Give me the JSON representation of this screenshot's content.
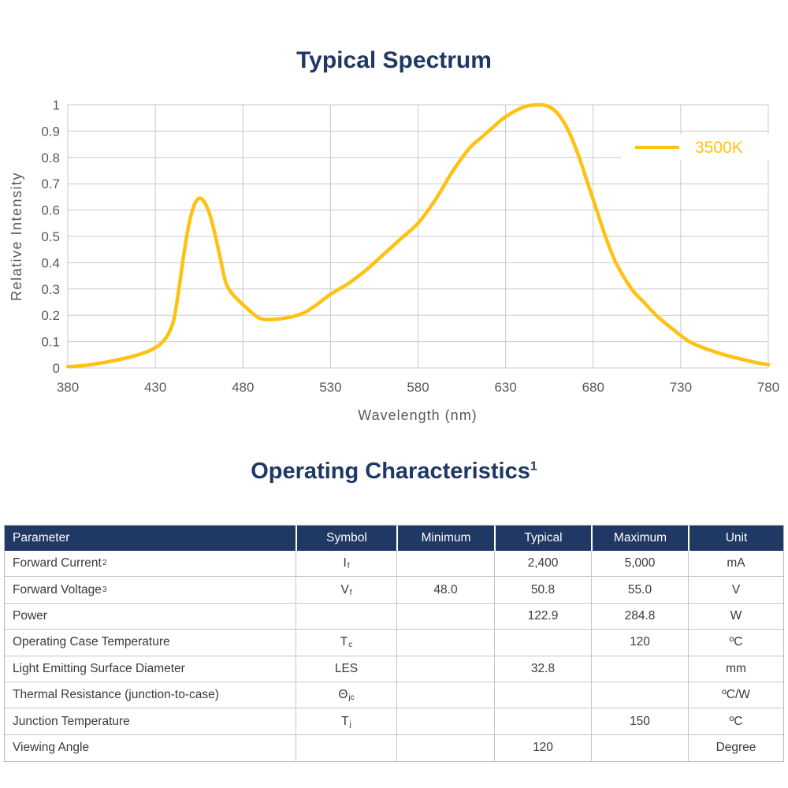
{
  "page": {
    "background": "#ffffff",
    "accent_navy": "#1f3864",
    "accent_gold": "#ffc112",
    "grid_color": "#c9c9c9",
    "axis_text_color": "#595959"
  },
  "chart_data": {
    "type": "line",
    "title": "Typical Spectrum",
    "xlabel": "Wavelength (nm)",
    "ylabel": "Relative Intensity",
    "xlim": [
      380,
      780
    ],
    "ylim": [
      0,
      1
    ],
    "x_ticks": [
      380,
      430,
      480,
      530,
      580,
      630,
      680,
      730,
      780
    ],
    "y_ticks": [
      0,
      0.1,
      0.2,
      0.3,
      0.4,
      0.5,
      0.6,
      0.7,
      0.8,
      0.9,
      1
    ],
    "grid": true,
    "legend_position": "inside-top-right",
    "series": [
      {
        "name": "3500K",
        "color": "#ffc112",
        "x": [
          380,
          390,
          400,
          410,
          420,
          428,
          435,
          440,
          443,
          446,
          449,
          452,
          455,
          458,
          461,
          464,
          467,
          470,
          473,
          477,
          481,
          486,
          491,
          500,
          508,
          515,
          522,
          530,
          540,
          550,
          560,
          570,
          580,
          590,
          600,
          610,
          616,
          622,
          628,
          635,
          641,
          648,
          654,
          660,
          666,
          672,
          677,
          682,
          687,
          693,
          702,
          709,
          716,
          725,
          735,
          745,
          755,
          765,
          772,
          780
        ],
        "y": [
          0.005,
          0.01,
          0.02,
          0.033,
          0.05,
          0.07,
          0.105,
          0.17,
          0.28,
          0.42,
          0.54,
          0.615,
          0.645,
          0.63,
          0.585,
          0.51,
          0.42,
          0.33,
          0.29,
          0.26,
          0.235,
          0.205,
          0.186,
          0.186,
          0.195,
          0.21,
          0.24,
          0.28,
          0.32,
          0.37,
          0.43,
          0.49,
          0.55,
          0.64,
          0.75,
          0.84,
          0.875,
          0.91,
          0.945,
          0.975,
          0.993,
          1.0,
          0.995,
          0.965,
          0.9,
          0.8,
          0.7,
          0.6,
          0.5,
          0.4,
          0.3,
          0.25,
          0.2,
          0.15,
          0.1,
          0.072,
          0.05,
          0.033,
          0.022,
          0.013
        ]
      }
    ]
  },
  "table": {
    "title": "Operating Characteristics",
    "title_sup": "1",
    "columns": [
      "Parameter",
      "Symbol",
      "Minimum",
      "Typical",
      "Maximum",
      "Unit"
    ],
    "rows": [
      {
        "parameter": "Forward Current",
        "parameter_sup": "2",
        "symbol": "I",
        "symbol_sub": "f",
        "minimum": "",
        "typical": "2,400",
        "maximum": "5,000",
        "unit": "mA"
      },
      {
        "parameter": "Forward Voltage",
        "parameter_sup": "3",
        "symbol": "V",
        "symbol_sub": "f",
        "minimum": "48.0",
        "typical": "50.8",
        "maximum": "55.0",
        "unit": "V"
      },
      {
        "parameter": "Power",
        "parameter_sup": "",
        "symbol": "",
        "symbol_sub": "",
        "minimum": "",
        "typical": "122.9",
        "maximum": "284.8",
        "unit": "W"
      },
      {
        "parameter": "Operating Case Temperature",
        "parameter_sup": "",
        "symbol": "T",
        "symbol_sub": "c",
        "minimum": "",
        "typical": "",
        "maximum": "120",
        "unit": "ºC"
      },
      {
        "parameter": "Light Emitting Surface Diameter",
        "parameter_sup": "",
        "symbol": "LES",
        "symbol_sub": "",
        "minimum": "",
        "typical": "32.8",
        "maximum": "",
        "unit": "mm"
      },
      {
        "parameter": "Thermal Resistance (junction-to-case)",
        "parameter_sup": "",
        "symbol": "Θ",
        "symbol_sub": "jc",
        "minimum": "",
        "typical": "",
        "maximum": "",
        "unit": "ºC/W"
      },
      {
        "parameter": "Junction Temperature",
        "parameter_sup": "",
        "symbol": "T",
        "symbol_sub": "j",
        "minimum": "",
        "typical": "",
        "maximum": "150",
        "unit": "ºC"
      },
      {
        "parameter": "Viewing Angle",
        "parameter_sup": "",
        "symbol": "",
        "symbol_sub": "",
        "minimum": "",
        "typical": "120",
        "maximum": "",
        "unit": "Degree"
      }
    ]
  }
}
